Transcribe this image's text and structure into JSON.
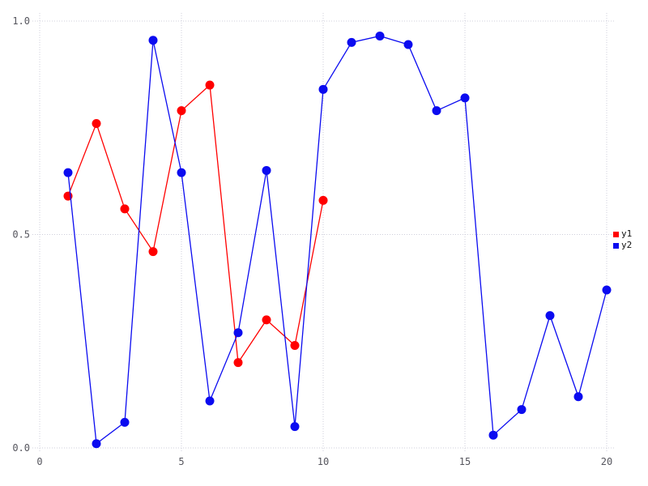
{
  "chart_data": {
    "type": "line",
    "title": "",
    "xlabel": "",
    "ylabel": "",
    "xlim": [
      0,
      20
    ],
    "ylim": [
      0.0,
      1.0
    ],
    "x_ticks": [
      0,
      5,
      10,
      15,
      20
    ],
    "x_tick_labels": [
      "0",
      "5",
      "10",
      "15",
      "20"
    ],
    "y_ticks": [
      0.0,
      0.5,
      1.0
    ],
    "y_tick_labels": [
      "0.0",
      "0.5",
      "1.0"
    ],
    "grid": true,
    "grid_style": "dotted",
    "grid_color": "#cfcfdb",
    "tick_label_color": "#56565e",
    "background_color": "#ffffff",
    "legend_position": "right",
    "marker": "circle",
    "series": [
      {
        "name": "y1",
        "color": "#ff0000",
        "x": [
          1,
          2,
          3,
          4,
          5,
          6,
          7,
          8,
          9,
          10
        ],
        "values": [
          0.59,
          0.76,
          0.56,
          0.46,
          0.79,
          0.85,
          0.2,
          0.3,
          0.24,
          0.58
        ]
      },
      {
        "name": "y2",
        "color": "#0b0bf0",
        "x": [
          1,
          2,
          3,
          4,
          5,
          6,
          7,
          8,
          9,
          10,
          11,
          12,
          13,
          14,
          15,
          16,
          17,
          18,
          19,
          20
        ],
        "values": [
          0.645,
          0.01,
          0.06,
          0.955,
          0.645,
          0.11,
          0.27,
          0.65,
          0.05,
          0.84,
          0.95,
          0.965,
          0.945,
          0.79,
          0.82,
          0.03,
          0.09,
          0.31,
          0.12,
          0.37
        ]
      }
    ]
  },
  "legend": {
    "items": [
      {
        "label": "y1",
        "color": "#ff0000"
      },
      {
        "label": "y2",
        "color": "#0b0bf0"
      }
    ]
  }
}
